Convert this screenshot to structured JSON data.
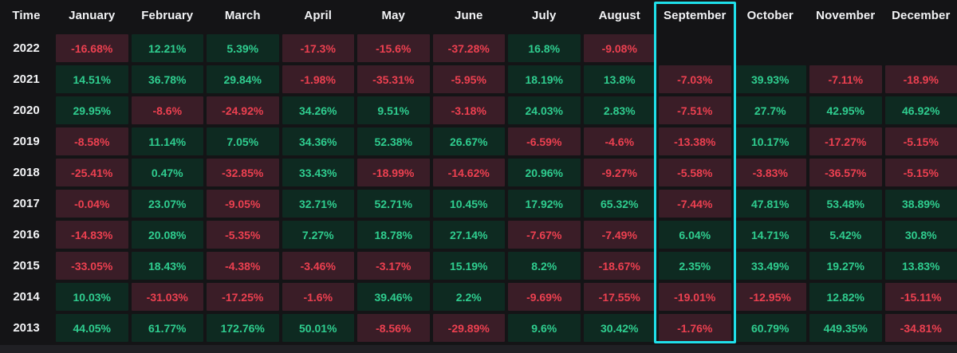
{
  "chart_data": {
    "type": "heatmap",
    "time_label": "Time",
    "columns": [
      "January",
      "February",
      "March",
      "April",
      "May",
      "June",
      "July",
      "August",
      "September",
      "October",
      "November",
      "December"
    ],
    "rows": [
      "2022",
      "2021",
      "2020",
      "2019",
      "2018",
      "2017",
      "2016",
      "2015",
      "2014",
      "2013"
    ],
    "values": [
      [
        "-16.68%",
        "12.21%",
        "5.39%",
        "-17.3%",
        "-15.6%",
        "-37.28%",
        "16.8%",
        "-9.08%",
        null,
        null,
        null,
        null
      ],
      [
        "14.51%",
        "36.78%",
        "29.84%",
        "-1.98%",
        "-35.31%",
        "-5.95%",
        "18.19%",
        "13.8%",
        "-7.03%",
        "39.93%",
        "-7.11%",
        "-18.9%"
      ],
      [
        "29.95%",
        "-8.6%",
        "-24.92%",
        "34.26%",
        "9.51%",
        "-3.18%",
        "24.03%",
        "2.83%",
        "-7.51%",
        "27.7%",
        "42.95%",
        "46.92%"
      ],
      [
        "-8.58%",
        "11.14%",
        "7.05%",
        "34.36%",
        "52.38%",
        "26.67%",
        "-6.59%",
        "-4.6%",
        "-13.38%",
        "10.17%",
        "-17.27%",
        "-5.15%"
      ],
      [
        "-25.41%",
        "0.47%",
        "-32.85%",
        "33.43%",
        "-18.99%",
        "-14.62%",
        "20.96%",
        "-9.27%",
        "-5.58%",
        "-3.83%",
        "-36.57%",
        "-5.15%"
      ],
      [
        "-0.04%",
        "23.07%",
        "-9.05%",
        "32.71%",
        "52.71%",
        "10.45%",
        "17.92%",
        "65.32%",
        "-7.44%",
        "47.81%",
        "53.48%",
        "38.89%"
      ],
      [
        "-14.83%",
        "20.08%",
        "-5.35%",
        "7.27%",
        "18.78%",
        "27.14%",
        "-7.67%",
        "-7.49%",
        "6.04%",
        "14.71%",
        "5.42%",
        "30.8%"
      ],
      [
        "-33.05%",
        "18.43%",
        "-4.38%",
        "-3.46%",
        "-3.17%",
        "15.19%",
        "8.2%",
        "-18.67%",
        "2.35%",
        "33.49%",
        "19.27%",
        "13.83%"
      ],
      [
        "10.03%",
        "-31.03%",
        "-17.25%",
        "-1.6%",
        "39.46%",
        "2.2%",
        "-9.69%",
        "-17.55%",
        "-19.01%",
        "-12.95%",
        "12.82%",
        "-15.11%"
      ],
      [
        "44.05%",
        "61.77%",
        "172.76%",
        "50.01%",
        "-8.56%",
        "-29.89%",
        "9.6%",
        "30.42%",
        "-1.76%",
        "60.79%",
        "449.35%",
        "-34.81%"
      ]
    ],
    "legend_position": "none",
    "grid": true
  },
  "highlight": {
    "column": "September"
  },
  "colors": {
    "page_bg": "#141416",
    "positive_text": "#2fcd8f",
    "positive_bg": "#0e2a21",
    "negative_text": "#ec4050",
    "negative_bg": "#3a1d27",
    "highlight_border": "#1fe0ea",
    "header_text": "#f2f3f5",
    "bottom_strip": "#202024"
  }
}
